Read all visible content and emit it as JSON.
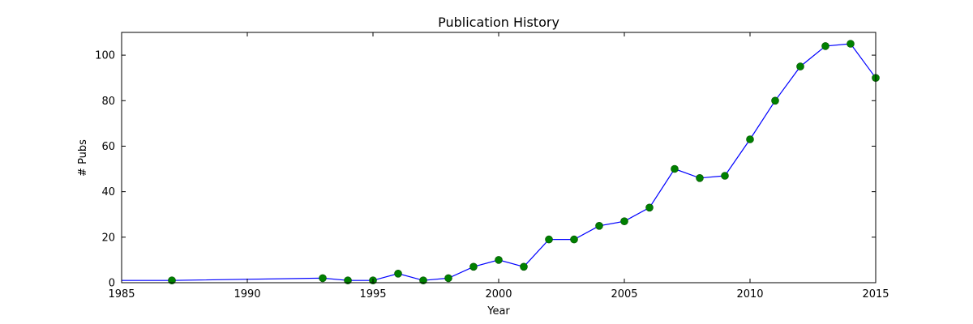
{
  "chart_data": {
    "type": "line",
    "title": "Publication History",
    "xlabel": "Year",
    "ylabel": "# Pubs",
    "xlim": [
      1985,
      2015
    ],
    "ylim": [
      0,
      110
    ],
    "x_ticks": [
      "1985",
      "1990",
      "1995",
      "2000",
      "2005",
      "2010",
      "2015"
    ],
    "y_ticks": [
      "0",
      "20",
      "40",
      "60",
      "80",
      "100"
    ],
    "grid": false,
    "legend": "none",
    "colors": {
      "line": "#0000ff",
      "marker": "#008000"
    },
    "x": [
      1985,
      1987,
      1993,
      1994,
      1995,
      1996,
      1997,
      1998,
      1999,
      2000,
      2001,
      2002,
      2003,
      2004,
      2005,
      2006,
      2007,
      2008,
      2009,
      2010,
      2011,
      2012,
      2013,
      2014,
      2015
    ],
    "y": [
      1,
      1,
      2,
      1,
      1,
      4,
      1,
      2,
      7,
      10,
      7,
      19,
      19,
      25,
      27,
      33,
      50,
      46,
      47,
      63,
      80,
      95,
      104,
      105,
      90
    ],
    "marked": [
      false,
      true,
      true,
      true,
      true,
      true,
      true,
      true,
      true,
      true,
      true,
      true,
      true,
      true,
      true,
      true,
      true,
      true,
      true,
      true,
      true,
      true,
      true,
      true,
      true
    ]
  }
}
